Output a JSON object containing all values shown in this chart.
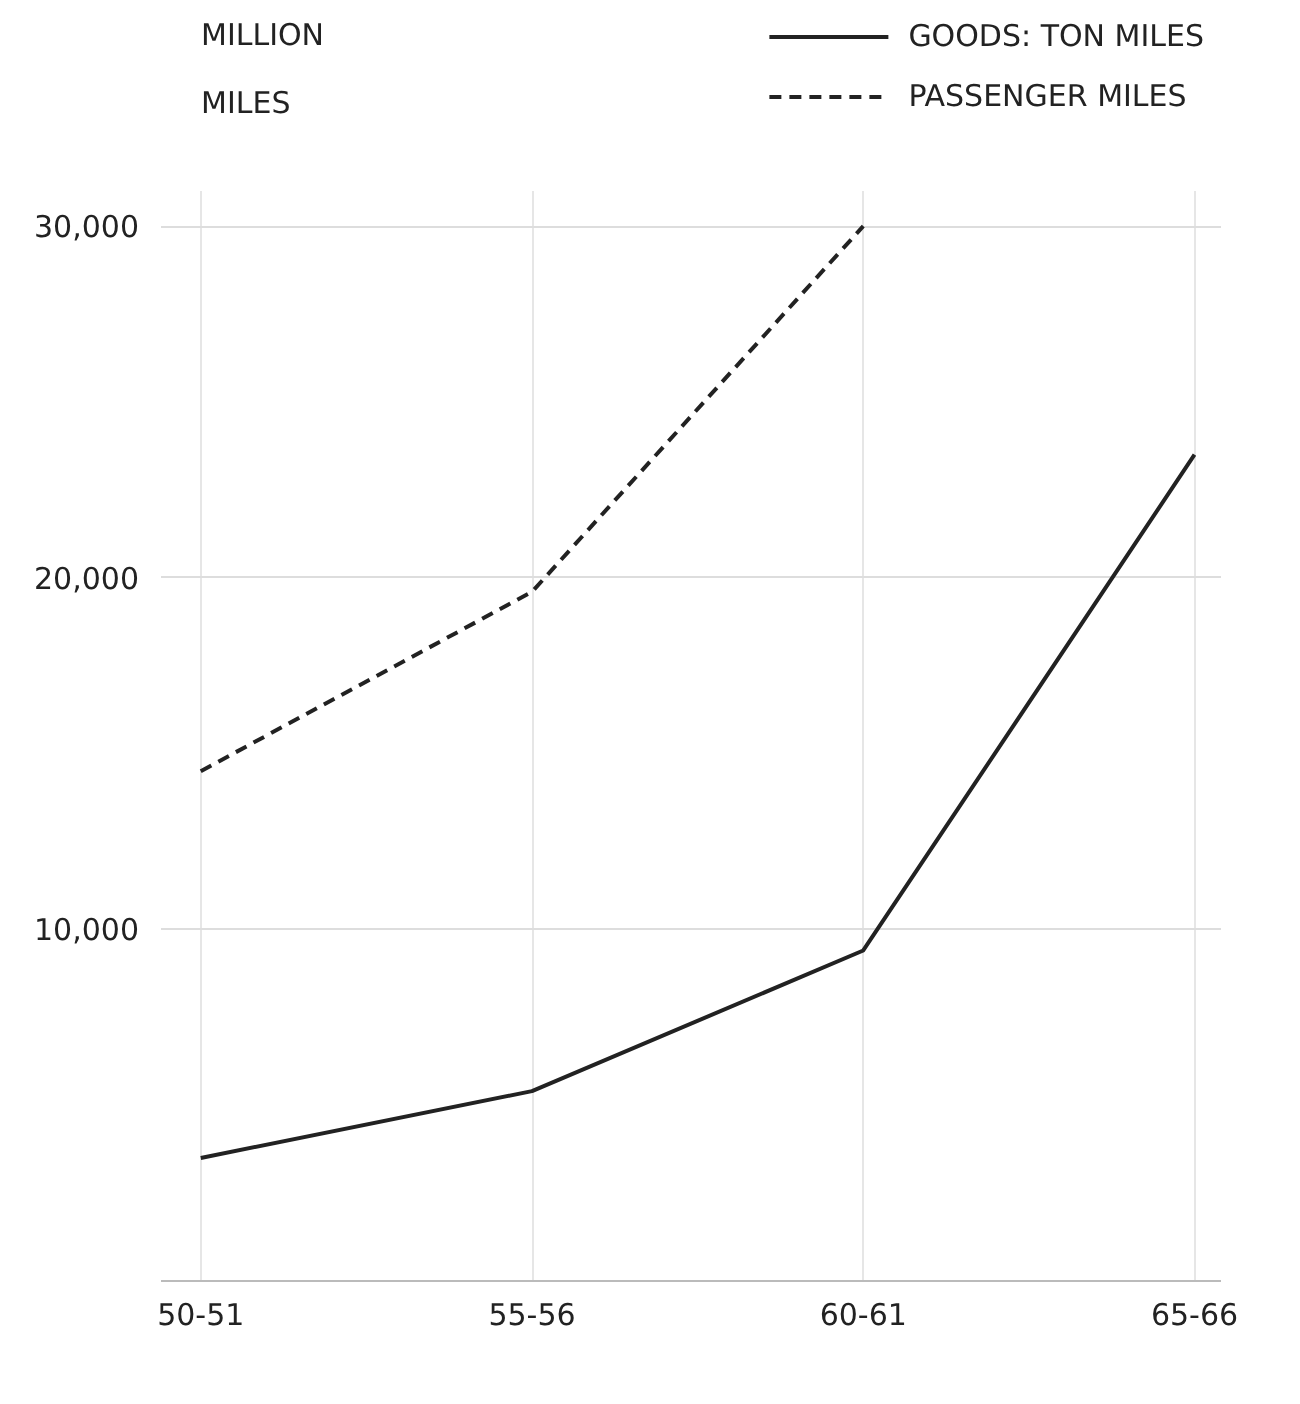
{
  "chart_data": {
    "type": "line",
    "ylabel": "MILLION MILES",
    "categories": [
      "50-51",
      "55-56",
      "60-61",
      "65-66"
    ],
    "series": [
      {
        "name": "GOODS: TON MILES",
        "color": "#222222",
        "line_style": "solid",
        "values": [
          3500,
          5400,
          9400,
          23500
        ]
      },
      {
        "name": "PASSENGER MILES",
        "color": "#222222",
        "line_style": "dashed",
        "values": [
          14500,
          19600,
          30000,
          null
        ]
      }
    ],
    "ylim": [
      0,
      31000
    ],
    "yticks": [
      {
        "value": 10000,
        "label": "10,000"
      },
      {
        "value": 20000,
        "label": "20,000"
      },
      {
        "value": 30000,
        "label": "30,000"
      }
    ],
    "grid": true,
    "legend": "top right"
  }
}
